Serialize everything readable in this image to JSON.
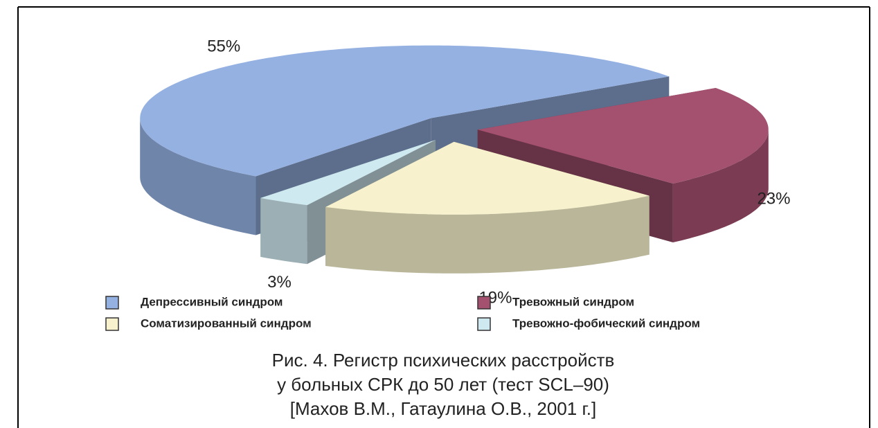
{
  "chart_data": {
    "type": "pie",
    "categories": [
      "Депрессивный синдром",
      "Тревожный синдром",
      "Соматизированный синдром",
      "Тревожно-фобический синдром"
    ],
    "values": [
      55,
      23,
      19,
      3
    ],
    "value_labels": [
      "55%",
      "23%",
      "19%",
      "3%"
    ],
    "colors": [
      "#95b1e2",
      "#a4506f",
      "#f7f2cd",
      "#cfe9f0"
    ],
    "legend": "bottom",
    "caption": [
      "Рис. 4. Регистр психических расстройств",
      "у больных СРК до 50 лет (тест SCL–90)",
      "[Махов В.М., Гатаулина О.В., 2001 г.]"
    ]
  }
}
